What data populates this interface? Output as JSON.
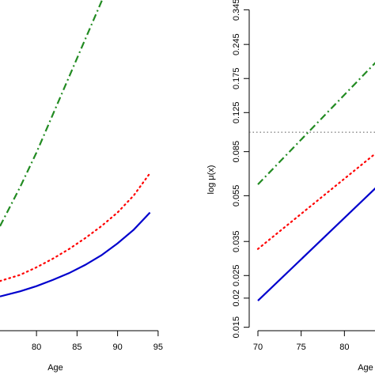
{
  "chart_data": [
    {
      "type": "line",
      "xlabel": "Age",
      "ylabel": "",
      "xlim": [
        75.5,
        95.5
      ],
      "ylim": [
        0.0,
        1.0
      ],
      "x_ticks": [
        80,
        85,
        90,
        95
      ],
      "x_tick_labels": [
        "80",
        "85",
        "90",
        "95"
      ],
      "series": [
        {
          "color": "#228b22",
          "style": "dashdot",
          "x": [
            75.5,
            78,
            80,
            82,
            84,
            86,
            88,
            89.5
          ],
          "y": [
            0.305,
            0.42,
            0.52,
            0.63,
            0.74,
            0.85,
            0.96,
            1.05
          ]
        },
        {
          "color": "#ff0000",
          "style": "dotted",
          "x": [
            75.5,
            78,
            80,
            82,
            84,
            86,
            88,
            90,
            92,
            94
          ],
          "y": [
            0.145,
            0.163,
            0.185,
            0.21,
            0.238,
            0.27,
            0.305,
            0.345,
            0.395,
            0.46
          ]
        },
        {
          "color": "#0000cd",
          "style": "solid",
          "x": [
            75.5,
            78,
            80,
            82,
            84,
            86,
            88,
            90,
            92,
            94
          ],
          "y": [
            0.1,
            0.115,
            0.13,
            0.148,
            0.168,
            0.192,
            0.22,
            0.255,
            0.295,
            0.345
          ]
        }
      ]
    },
    {
      "type": "line",
      "xlabel": "Age",
      "ylabel": "log μ(x)",
      "y_scale": "log",
      "xlim": [
        70,
        85
      ],
      "ylim": [
        0.0145,
        0.38
      ],
      "x_ticks": [
        70,
        75,
        80
      ],
      "x_tick_labels": [
        "70",
        "75",
        "80"
      ],
      "y_ticks": [
        0.015,
        0.02,
        0.025,
        0.035,
        0.055,
        0.085,
        0.125,
        0.175,
        0.245,
        0.345
      ],
      "y_tick_labels": [
        "0.015",
        "0.02",
        "0.025",
        "0.035",
        "0.055",
        "0.085",
        "0.125",
        "0.175",
        "0.245",
        "0.345"
      ],
      "reference_line": {
        "y": 0.103,
        "color": "#555555",
        "style": "dotted"
      },
      "series": [
        {
          "color": "#228b22",
          "style": "dashdot",
          "x": [
            70,
            85
          ],
          "y": [
            0.0615,
            0.232
          ]
        },
        {
          "color": "#ff0000",
          "style": "dotted",
          "x": [
            70,
            85
          ],
          "y": [
            0.0325,
            0.092
          ]
        },
        {
          "color": "#0000cd",
          "style": "solid",
          "x": [
            70,
            85
          ],
          "y": [
            0.0195,
            0.0665
          ]
        }
      ]
    }
  ]
}
